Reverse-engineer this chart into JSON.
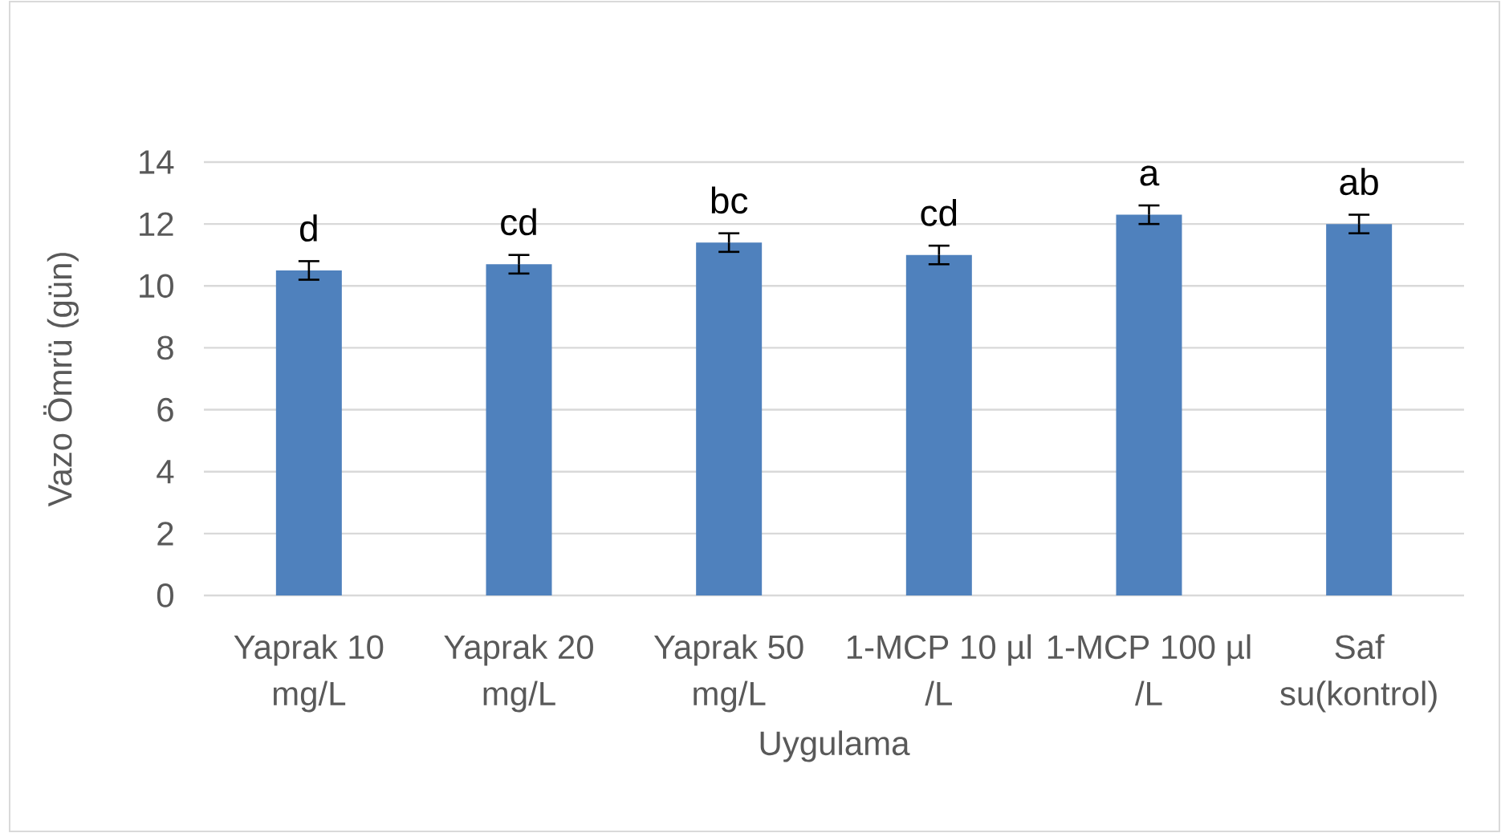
{
  "chart_data": {
    "type": "bar",
    "categories": [
      "Yaprak 10 mg/L",
      "Yaprak 20 mg/L",
      "Yaprak 50 mg/L",
      "1-MCP 10 µl /L",
      "1-MCP 100 µl /L",
      "Saf su(kontrol)"
    ],
    "values": [
      10.5,
      10.7,
      11.4,
      11.0,
      12.3,
      12.0
    ],
    "errors": [
      0.3,
      0.3,
      0.3,
      0.3,
      0.3,
      0.3
    ],
    "color": "#4f81bd",
    "xlabel": "Uygulama",
    "ylabel": "Vazo Ömrü (gün)",
    "ylim": [
      0,
      14
    ],
    "yticks": [
      0,
      2,
      4,
      6,
      8,
      10,
      12,
      14
    ],
    "grid": "y",
    "annotations": [
      "d",
      "cd",
      "bc",
      "cd",
      "a",
      "ab"
    ]
  }
}
